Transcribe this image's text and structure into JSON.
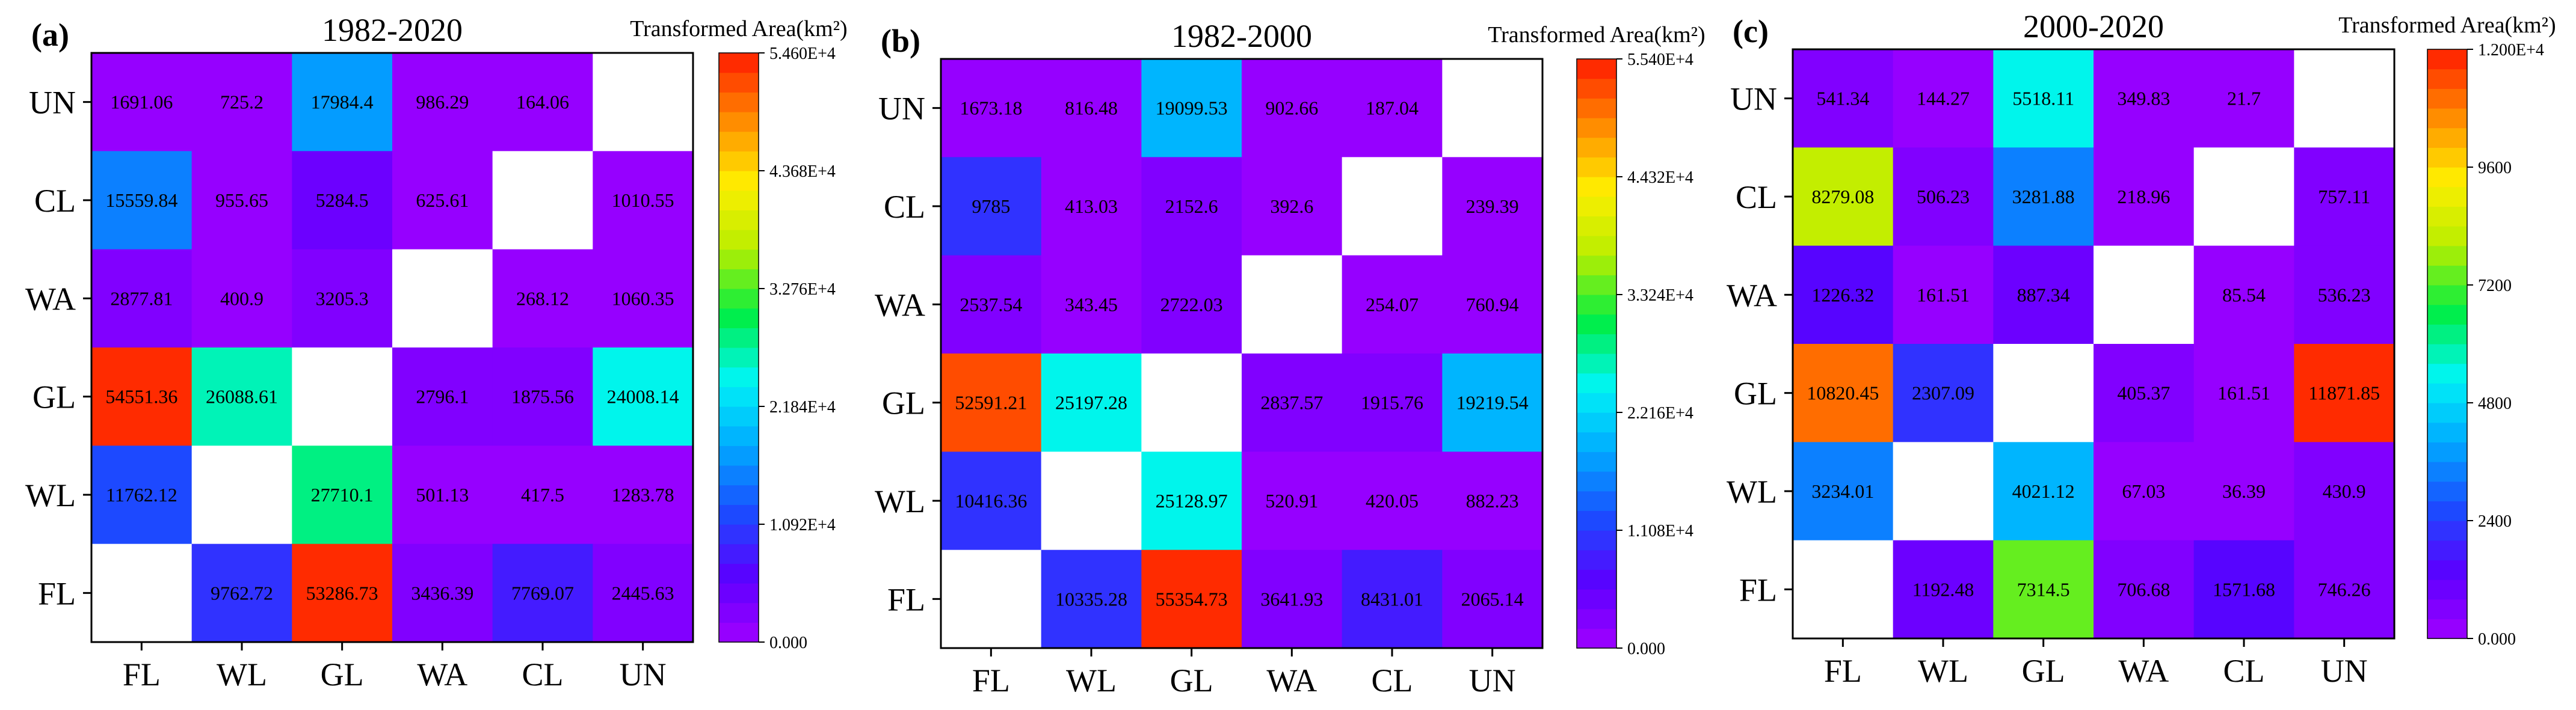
{
  "chart_data": [
    {
      "type": "heatmap",
      "panel_label": "(a)",
      "title": "1982-2020",
      "colorbar_title": "Transformed Area(km²)",
      "rows": [
        "UN",
        "CL",
        "WA",
        "GL",
        "WL",
        "FL"
      ],
      "columns": [
        "FL",
        "WL",
        "GL",
        "WA",
        "CL",
        "UN"
      ],
      "values": [
        [
          1691.06,
          725.2,
          17984.4,
          986.29,
          164.06,
          null
        ],
        [
          15559.84,
          955.65,
          5284.5,
          625.61,
          null,
          1010.55
        ],
        [
          2877.81,
          400.9,
          3205.3,
          null,
          268.12,
          1060.35
        ],
        [
          54551.36,
          26088.61,
          null,
          2796.1,
          1875.56,
          24008.14
        ],
        [
          11762.12,
          null,
          27710.1,
          501.13,
          417.5,
          1283.78
        ],
        [
          null,
          9762.72,
          53286.73,
          3436.39,
          7769.07,
          2445.63
        ]
      ],
      "labels": [
        [
          "1691.06",
          "725.2",
          "17984.4",
          "986.29",
          "164.06",
          ""
        ],
        [
          "15559.84",
          "955.65",
          "5284.5",
          "625.61",
          "",
          "1010.55"
        ],
        [
          "2877.81",
          "400.9",
          "3205.3",
          "",
          "268.12",
          "1060.35"
        ],
        [
          "54551.36",
          "26088.61",
          "",
          "2796.1",
          "1875.56",
          "24008.14"
        ],
        [
          "11762.12",
          "",
          "27710.1",
          "501.13",
          "417.5",
          "1283.78"
        ],
        [
          "",
          "9762.72",
          "53286.73",
          "3436.39",
          "7769.07",
          "2445.63"
        ]
      ],
      "color_range": [
        0,
        54600
      ],
      "colorbar_ticks": [
        {
          "value": 0,
          "label": "0.000"
        },
        {
          "value": 10920,
          "label": "1.092E+4"
        },
        {
          "value": 21840,
          "label": "2.184E+4"
        },
        {
          "value": 32760,
          "label": "3.276E+4"
        },
        {
          "value": 43680,
          "label": "4.368E+4"
        },
        {
          "value": 54600,
          "label": "5.460E+4"
        }
      ]
    },
    {
      "type": "heatmap",
      "panel_label": "(b)",
      "title": "1982-2000",
      "colorbar_title": "Transformed Area(km²)",
      "rows": [
        "UN",
        "CL",
        "WA",
        "GL",
        "WL",
        "FL"
      ],
      "columns": [
        "FL",
        "WL",
        "GL",
        "WA",
        "CL",
        "UN"
      ],
      "values": [
        [
          1673.18,
          816.48,
          19099.53,
          902.66,
          187.04,
          null
        ],
        [
          9785,
          413.03,
          2152.6,
          392.6,
          null,
          239.39
        ],
        [
          2537.54,
          343.45,
          2722.03,
          null,
          254.07,
          760.94
        ],
        [
          52591.21,
          25197.28,
          null,
          2837.57,
          1915.76,
          19219.54
        ],
        [
          10416.36,
          null,
          25128.97,
          520.91,
          420.05,
          882.23
        ],
        [
          null,
          10335.28,
          55354.73,
          3641.93,
          8431.01,
          2065.14
        ]
      ],
      "labels": [
        [
          "1673.18",
          "816.48",
          "19099.53",
          "902.66",
          "187.04",
          ""
        ],
        [
          "9785",
          "413.03",
          "2152.6",
          "392.6",
          "",
          "239.39"
        ],
        [
          "2537.54",
          "343.45",
          "2722.03",
          "",
          "254.07",
          "760.94"
        ],
        [
          "52591.21",
          "25197.28",
          "",
          "2837.57",
          "1915.76",
          "19219.54"
        ],
        [
          "10416.36",
          "",
          "25128.97",
          "520.91",
          "420.05",
          "882.23"
        ],
        [
          "",
          "10335.28",
          "55354.73",
          "3641.93",
          "8431.01",
          "2065.14"
        ]
      ],
      "color_range": [
        0,
        55400
      ],
      "colorbar_ticks": [
        {
          "value": 0,
          "label": "0.000"
        },
        {
          "value": 11080,
          "label": "1.108E+4"
        },
        {
          "value": 22160,
          "label": "2.216E+4"
        },
        {
          "value": 33240,
          "label": "3.324E+4"
        },
        {
          "value": 44320,
          "label": "4.432E+4"
        },
        {
          "value": 55400,
          "label": "5.540E+4"
        }
      ]
    },
    {
      "type": "heatmap",
      "panel_label": "(c)",
      "title": "2000-2020",
      "colorbar_title": "Transformed Area(km²)",
      "rows": [
        "UN",
        "CL",
        "WA",
        "GL",
        "WL",
        "FL"
      ],
      "columns": [
        "FL",
        "WL",
        "GL",
        "WA",
        "CL",
        "UN"
      ],
      "values": [
        [
          541.34,
          144.27,
          5518.11,
          349.83,
          21.7,
          null
        ],
        [
          8279.08,
          506.23,
          3281.88,
          218.96,
          null,
          757.11
        ],
        [
          1226.32,
          161.51,
          887.34,
          null,
          85.54,
          536.23
        ],
        [
          10820.45,
          2307.09,
          null,
          405.37,
          161.51,
          11871.85
        ],
        [
          3234.01,
          null,
          4021.12,
          67.03,
          36.39,
          430.9
        ],
        [
          null,
          1192.48,
          7314.5,
          706.68,
          1571.68,
          746.26
        ]
      ],
      "labels": [
        [
          "541.34",
          "144.27",
          "5518.11",
          "349.83",
          "21.7",
          ""
        ],
        [
          "8279.08",
          "506.23",
          "3281.88",
          "218.96",
          "",
          "757.11"
        ],
        [
          "1226.32",
          "161.51",
          "887.34",
          "",
          "85.54",
          "536.23"
        ],
        [
          "10820.45",
          "2307.09",
          "",
          "405.37",
          "161.51",
          "11871.85"
        ],
        [
          "3234.01",
          "",
          "4021.12",
          "67.03",
          "36.39",
          "430.9"
        ],
        [
          "",
          "1192.48",
          "7314.5",
          "706.68",
          "1571.68",
          "746.26"
        ]
      ],
      "color_range": [
        0,
        12000
      ],
      "colorbar_ticks": [
        {
          "value": 0,
          "label": "0.000"
        },
        {
          "value": 2400,
          "label": "2400"
        },
        {
          "value": 4800,
          "label": "4800"
        },
        {
          "value": 7200,
          "label": "7200"
        },
        {
          "value": 9600,
          "label": "9600"
        },
        {
          "value": 12000,
          "label": "1.200E+4"
        }
      ]
    }
  ],
  "colormap": {
    "name": "rainbow-purple-to-red",
    "levels": 30,
    "stops": [
      "#a000ff",
      "#5a00ff",
      "#1a4dff",
      "#00aaff",
      "#00f5f5",
      "#00ee44",
      "#b8ee00",
      "#ffee00",
      "#ff8800",
      "#ff1a00"
    ]
  }
}
